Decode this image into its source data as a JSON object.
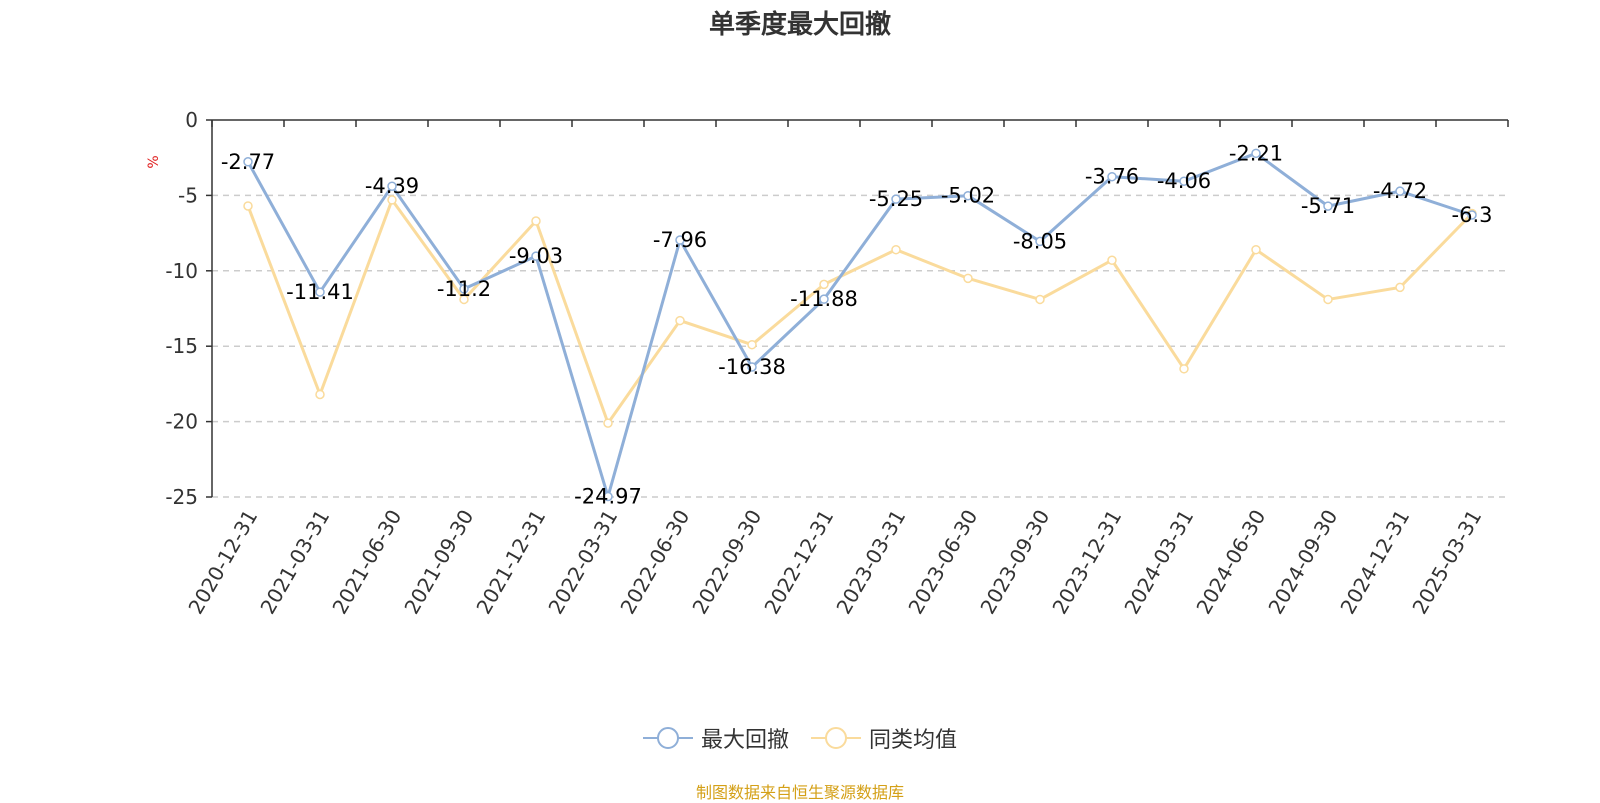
{
  "chart_data": {
    "type": "line",
    "title": "单季度最大回撤",
    "ylabel": "%",
    "xlabel": "",
    "categories": [
      "2020-12-31",
      "2021-03-31",
      "2021-06-30",
      "2021-09-30",
      "2021-12-31",
      "2022-03-31",
      "2022-06-30",
      "2022-09-30",
      "2022-12-31",
      "2023-03-31",
      "2023-06-30",
      "2023-09-30",
      "2023-12-31",
      "2024-03-31",
      "2024-06-30",
      "2024-09-30",
      "2024-12-31",
      "2025-03-31"
    ],
    "ylim": [
      -25,
      0
    ],
    "yticks": [
      0,
      -5,
      -10,
      -15,
      -20,
      -25
    ],
    "grid": true,
    "legend_position": "bottom-center",
    "series": [
      {
        "name": "最大回撤",
        "color": "#8fafd8",
        "show_labels": true,
        "values": [
          -2.77,
          -11.41,
          -4.39,
          -11.2,
          -9.03,
          -24.97,
          -7.96,
          -16.38,
          -11.88,
          -5.25,
          -5.02,
          -8.05,
          -3.76,
          -4.06,
          -2.21,
          -5.71,
          -4.72,
          -6.3
        ]
      },
      {
        "name": "同类均值",
        "color": "#fadb9c",
        "show_labels": false,
        "values": [
          -5.7,
          -18.2,
          -5.3,
          -11.9,
          -6.7,
          -20.1,
          -13.3,
          -14.9,
          -10.9,
          -8.6,
          -10.5,
          -11.9,
          -9.3,
          -16.5,
          -8.6,
          -11.9,
          -11.1,
          -6.2
        ]
      }
    ]
  },
  "source_note": "制图数据来自恒生聚源数据库",
  "colors": {
    "title": "#333333",
    "axis": "#333333",
    "grid": "#cccccc",
    "ylabel": "#e02020",
    "source_note": "#d4a017"
  }
}
